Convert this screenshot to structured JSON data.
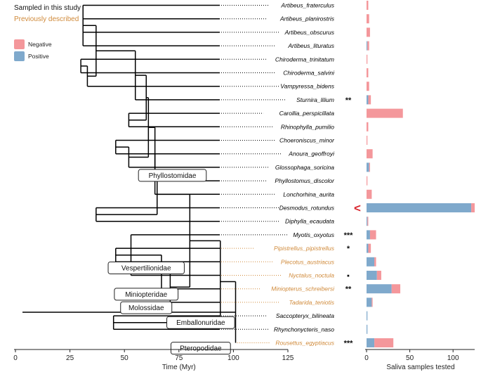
{
  "legend": {
    "sampled_label": "Sampled in this study",
    "previous_label": "Previously described",
    "negative_label": "Negative",
    "positive_label": "Positive"
  },
  "colors": {
    "sampled": "#000000",
    "previous": "#d08a3a",
    "negative": "#f4979b",
    "positive": "#7fa9cc",
    "branch": "#000000",
    "arrow": "#d9262e"
  },
  "families": [
    "Phyllostomidae",
    "Vespertilionidae",
    "Miniopteridae",
    "Molossidae",
    "Emballonuridae",
    "Pteropodidae"
  ],
  "chart_data": {
    "type": "bar",
    "tree_axis": {
      "label": "Time (Myr)",
      "ticks": [
        0,
        25,
        50,
        75,
        100,
        125
      ],
      "range": [
        0,
        125
      ]
    },
    "bar_axis": {
      "label": "Saliva samples tested",
      "ticks": [
        0,
        50,
        100
      ],
      "range": [
        0,
        125
      ]
    },
    "species": [
      {
        "name": "Artibeus_fraterculus",
        "source": "sampled",
        "positive": 0,
        "negative": 2,
        "sig": ""
      },
      {
        "name": "Artibeus_planirostris",
        "source": "sampled",
        "positive": 0,
        "negative": 3,
        "sig": ""
      },
      {
        "name": "Artibeus_obscurus",
        "source": "sampled",
        "positive": 0,
        "negative": 4,
        "sig": ""
      },
      {
        "name": "Artibeus_lituratus",
        "source": "sampled",
        "positive": 1,
        "negative": 2,
        "sig": ""
      },
      {
        "name": "Chiroderma_trinitatum",
        "source": "sampled",
        "positive": 0,
        "negative": 1,
        "sig": ""
      },
      {
        "name": "Chiroderma_salvini",
        "source": "sampled",
        "positive": 0,
        "negative": 2,
        "sig": ""
      },
      {
        "name": "Vampyressa_bidens",
        "source": "sampled",
        "positive": 0,
        "negative": 3,
        "sig": ""
      },
      {
        "name": "Sturnira_lilium",
        "source": "sampled",
        "positive": 2,
        "negative": 3,
        "sig": "**"
      },
      {
        "name": "Carollia_perspicillata",
        "source": "sampled",
        "positive": 0,
        "negative": 42,
        "sig": ""
      },
      {
        "name": "Rhinophylla_pumilio",
        "source": "sampled",
        "positive": 0,
        "negative": 2,
        "sig": ""
      },
      {
        "name": "Choeroniscus_minor",
        "source": "sampled",
        "positive": 0,
        "negative": 1,
        "sig": ""
      },
      {
        "name": "Anoura_geoffroyi",
        "source": "sampled",
        "positive": 0,
        "negative": 7,
        "sig": ""
      },
      {
        "name": "Glossophaga_soricina",
        "source": "sampled",
        "positive": 3,
        "negative": 1,
        "sig": ""
      },
      {
        "name": "Phyllostomus_discolor",
        "source": "sampled",
        "positive": 0,
        "negative": 1,
        "sig": ""
      },
      {
        "name": "Lonchorhina_aurita",
        "source": "sampled",
        "positive": 0,
        "negative": 6,
        "sig": ""
      },
      {
        "name": "Desmodus_rotundus",
        "source": "sampled",
        "positive": 121,
        "negative": 4,
        "sig": "",
        "marker": "<"
      },
      {
        "name": "Diphylla_ecaudata",
        "source": "sampled",
        "positive": 1,
        "negative": 1,
        "sig": ""
      },
      {
        "name": "Myotis_oxyotus",
        "source": "sampled",
        "positive": 4,
        "negative": 7,
        "sig": "***"
      },
      {
        "name": "Pipistrellus_pipistrellus",
        "source": "previous",
        "positive": 2,
        "negative": 3,
        "sig": "*"
      },
      {
        "name": "Plecotus_austriacus",
        "source": "previous",
        "positive": 9,
        "negative": 2,
        "sig": ""
      },
      {
        "name": "Nyctalus_noctula",
        "source": "previous",
        "positive": 12,
        "negative": 5,
        "sig": "▪"
      },
      {
        "name": "Miniopterus_schreibersi",
        "source": "previous",
        "positive": 29,
        "negative": 10,
        "sig": "**"
      },
      {
        "name": "Tadarida_teniotis",
        "source": "previous",
        "positive": 6,
        "negative": 1,
        "sig": ""
      },
      {
        "name": "Saccopteryx_bilineata",
        "source": "sampled",
        "positive": 1,
        "negative": 0,
        "sig": ""
      },
      {
        "name": "Rhynchonycteris_naso",
        "source": "sampled",
        "positive": 1,
        "negative": 0,
        "sig": ""
      },
      {
        "name": "Rousettus_egyptiacus",
        "source": "previous",
        "positive": 9,
        "negative": 22,
        "sig": "***"
      }
    ],
    "tree_nodes": [
      {
        "id": "A1",
        "age": 31,
        "children": [
          0,
          1,
          2,
          3
        ]
      },
      {
        "id": "A2",
        "age": 30,
        "children": [
          4,
          5
        ]
      },
      {
        "id": "A3",
        "age": 33,
        "children": [
          "A2",
          6
        ]
      },
      {
        "id": "A4",
        "age": 37,
        "children": [
          "A1",
          "A3"
        ]
      },
      {
        "id": "A5",
        "age": 55,
        "children": [
          "A4",
          7
        ]
      },
      {
        "id": "A6",
        "age": 52,
        "children": [
          8,
          9
        ]
      },
      {
        "id": "A7",
        "age": 60,
        "children": [
          "A5",
          "A6"
        ]
      },
      {
        "id": "A8",
        "age": 46,
        "children": [
          10,
          11
        ]
      },
      {
        "id": "A9",
        "age": 52,
        "children": [
          "A8",
          12
        ]
      },
      {
        "id": "A10",
        "age": 61,
        "children": [
          "A7",
          "A9"
        ]
      },
      {
        "id": "A11",
        "age": 64,
        "children": [
          "A10",
          13
        ]
      },
      {
        "id": "A12",
        "age": 64,
        "children": [
          "A11",
          14
        ]
      },
      {
        "id": "A13",
        "age": 37,
        "children": [
          15,
          16
        ]
      },
      {
        "id": "A14",
        "age": 65,
        "children": [
          "A12",
          "A13"
        ]
      },
      {
        "id": "A15",
        "age": 46,
        "children": [
          18,
          19
        ]
      },
      {
        "id": "A16",
        "age": 53,
        "children": [
          17,
          "A15",
          20
        ]
      },
      {
        "id": "A17",
        "age": 67,
        "children": [
          "A16",
          21
        ]
      },
      {
        "id": "A18",
        "age": 71,
        "children": [
          "A17",
          22
        ]
      },
      {
        "id": "A19",
        "age": 80,
        "children": [
          "A14",
          "A18"
        ]
      },
      {
        "id": "A20",
        "age": 45,
        "children": [
          23,
          24
        ]
      },
      {
        "id": "A21",
        "age": 94,
        "children": [
          "A19",
          "A20"
        ]
      },
      {
        "id": "A22",
        "age": 101,
        "children": [
          "A21",
          25
        ]
      }
    ],
    "clade_labels": [
      {
        "family": 0,
        "age": 72,
        "row": 12.6
      },
      {
        "family": 1,
        "age": 60,
        "row": 19.45
      },
      {
        "family": 2,
        "age": 60,
        "row": 21.4
      },
      {
        "family": 3,
        "age": 60,
        "row": 22.4
      },
      {
        "family": 4,
        "age": 85,
        "row": 23.5
      },
      {
        "family": 5,
        "age": 85,
        "row": 25.4
      }
    ]
  }
}
